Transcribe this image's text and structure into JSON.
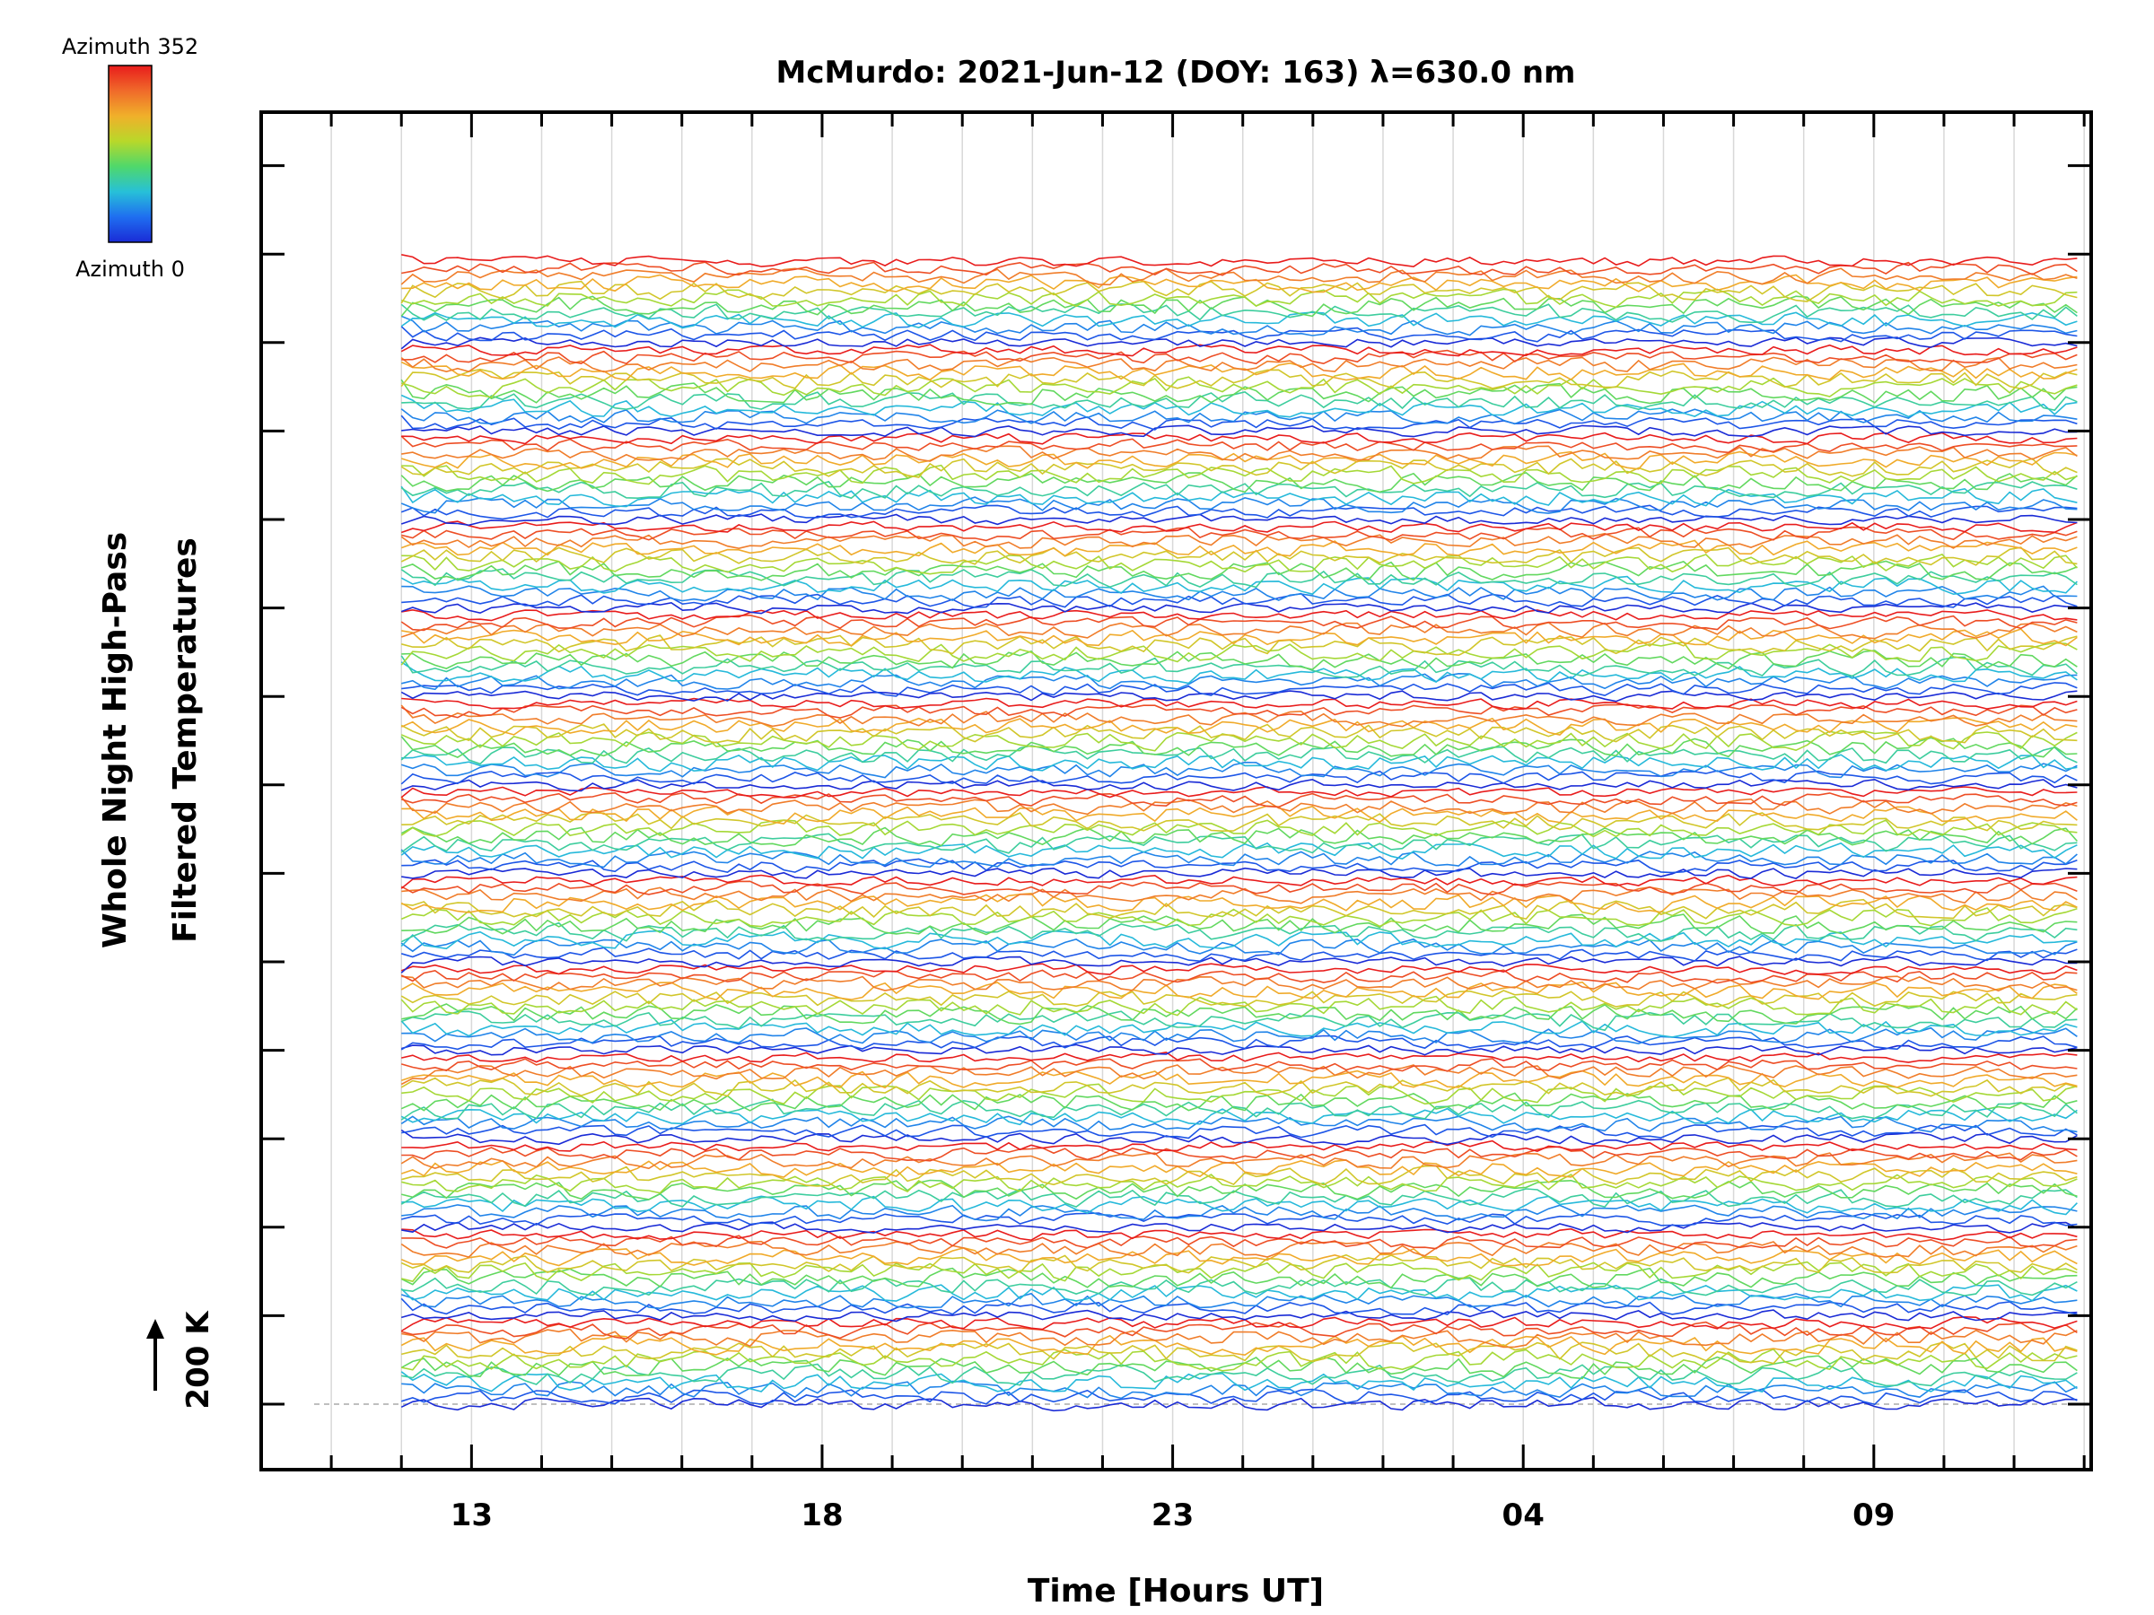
{
  "chart_data": {
    "type": "line",
    "title": "McMurdo: 2021-Jun-12 (DOY: 163) λ=630.0 nm",
    "xlabel": "Time [Hours UT]",
    "ylabel_lines": [
      "Whole Night High-Pass",
      "Filtered Temperatures"
    ],
    "x_tick_labels": [
      "13",
      "18",
      "23",
      "04",
      "09"
    ],
    "x_tick_hours": [
      13,
      18,
      23,
      28,
      33
    ],
    "xlim": [
      10,
      36.1
    ],
    "data_start_hour": 12.0,
    "data_end_hour": 35.9,
    "traces_per_group": 12,
    "groups": 13,
    "group_height_offset_units": 4,
    "scale_bar_label": "200 K",
    "baseline_label": "200",
    "colorbar": {
      "min_label": "Azimuth 0",
      "max_label": "Azimuth 352",
      "colors": [
        "#1a2bd6",
        "#1f6ef0",
        "#27c0d8",
        "#4fd86b",
        "#b8d82a",
        "#f0b02a",
        "#f06a2a",
        "#e81c1c"
      ]
    },
    "grid": true,
    "line_colors_by_azimuth": true
  }
}
